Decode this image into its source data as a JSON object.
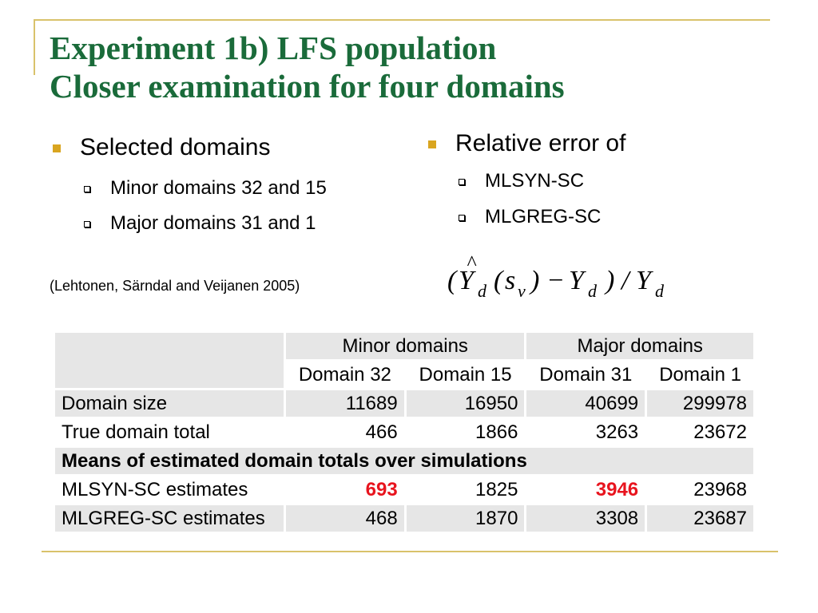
{
  "title": {
    "line1": "Experiment 1b) LFS population",
    "line2": "Closer examination for four domains"
  },
  "left": {
    "heading": "Selected domains",
    "items": [
      "Minor domains 32 and 15",
      "Major domains 31 and 1"
    ],
    "citation": "(Lehtonen, Särndal and Veijanen 2005)"
  },
  "right": {
    "heading": "Relative error of",
    "items": [
      "MLSYN-SC",
      "MLGREG-SC"
    ]
  },
  "formula": {
    "text": "(Ŷd(sv) − Yd)/Yd"
  },
  "table": {
    "group_headers": [
      "Minor domains",
      "Major domains"
    ],
    "col_headers": [
      "Domain 32",
      "Domain 15",
      "Domain 31",
      "Domain 1"
    ],
    "rows": [
      {
        "label": "Domain size",
        "values": [
          "11689",
          "16950",
          "40699",
          "299978"
        ]
      },
      {
        "label": "True domain total",
        "values": [
          "466",
          "1866",
          "3263",
          "23672"
        ]
      }
    ],
    "section_label": "Means of estimated domain totals over simulations",
    "est_rows": [
      {
        "label": "MLSYN-SC estimates",
        "values": [
          "693",
          "1825",
          "3946",
          "23968"
        ]
      },
      {
        "label": "MLGREG-SC estimates",
        "values": [
          "468",
          "1870",
          "3308",
          "23687"
        ]
      }
    ]
  },
  "colors": {
    "title": "#1a6b3a",
    "accent": "#d9a520",
    "highlight": "#e8141e"
  }
}
